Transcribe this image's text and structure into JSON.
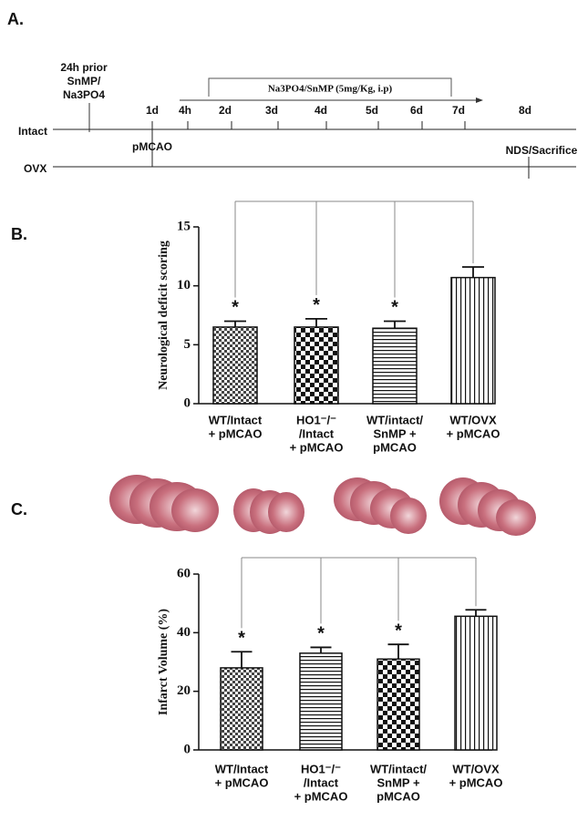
{
  "timeline": {
    "panel": "A.",
    "prior": [
      "24h prior",
      "SnMP/",
      "Na3PO4"
    ],
    "treatment": "Na3PO4/SnMP (5mg/Kg, i.p)",
    "groups": [
      "Intact",
      "OVX"
    ],
    "times": [
      "1d",
      "4h",
      "2d",
      "3d",
      "4d",
      "5d",
      "6d",
      "7d",
      "8d"
    ],
    "event_start": "pMCAO",
    "event_end": "NDS/Sacrifice"
  },
  "chart_data": [
    {
      "type": "bar",
      "panel": "B.",
      "y_label": "Neurological deficit scoring",
      "categories": [
        [
          "WT/Intact",
          "+ pMCAO"
        ],
        [
          "HO1⁻/⁻",
          "/Intact",
          "+ pMCAO"
        ],
        [
          "WT/intact/",
          "SnMP +",
          "pMCAO"
        ],
        [
          "WT/OVX",
          "+ pMCAO"
        ]
      ],
      "values": [
        6.5,
        6.5,
        6.4,
        10.7
      ],
      "errors": [
        0.5,
        0.7,
        0.6,
        0.9
      ],
      "significance": [
        "*",
        "*",
        "*",
        null
      ],
      "patterns": [
        "checker-small",
        "checker",
        "horizontal",
        "vertical"
      ],
      "ylim": [
        0,
        15
      ],
      "yticks": [
        0,
        5,
        10,
        15
      ]
    },
    {
      "type": "bar",
      "panel": "C.",
      "y_label": "Infarct Volume (%)",
      "categories": [
        [
          "WT/Intact",
          "+ pMCAO"
        ],
        [
          "HO1⁻/⁻",
          "/Intact",
          "+ pMCAO"
        ],
        [
          "WT/intact/",
          "SnMP +",
          "pMCAO"
        ],
        [
          "WT/OVX",
          "+ pMCAO"
        ]
      ],
      "values": [
        28,
        33,
        31,
        45.6
      ],
      "errors": [
        5.5,
        2,
        5,
        2.2
      ],
      "significance": [
        "*",
        "*",
        "*",
        null
      ],
      "patterns": [
        "checker-small",
        "horizontal",
        "checker",
        "vertical"
      ],
      "ylim": [
        0,
        60
      ],
      "yticks": [
        0,
        20,
        40,
        60
      ]
    }
  ]
}
